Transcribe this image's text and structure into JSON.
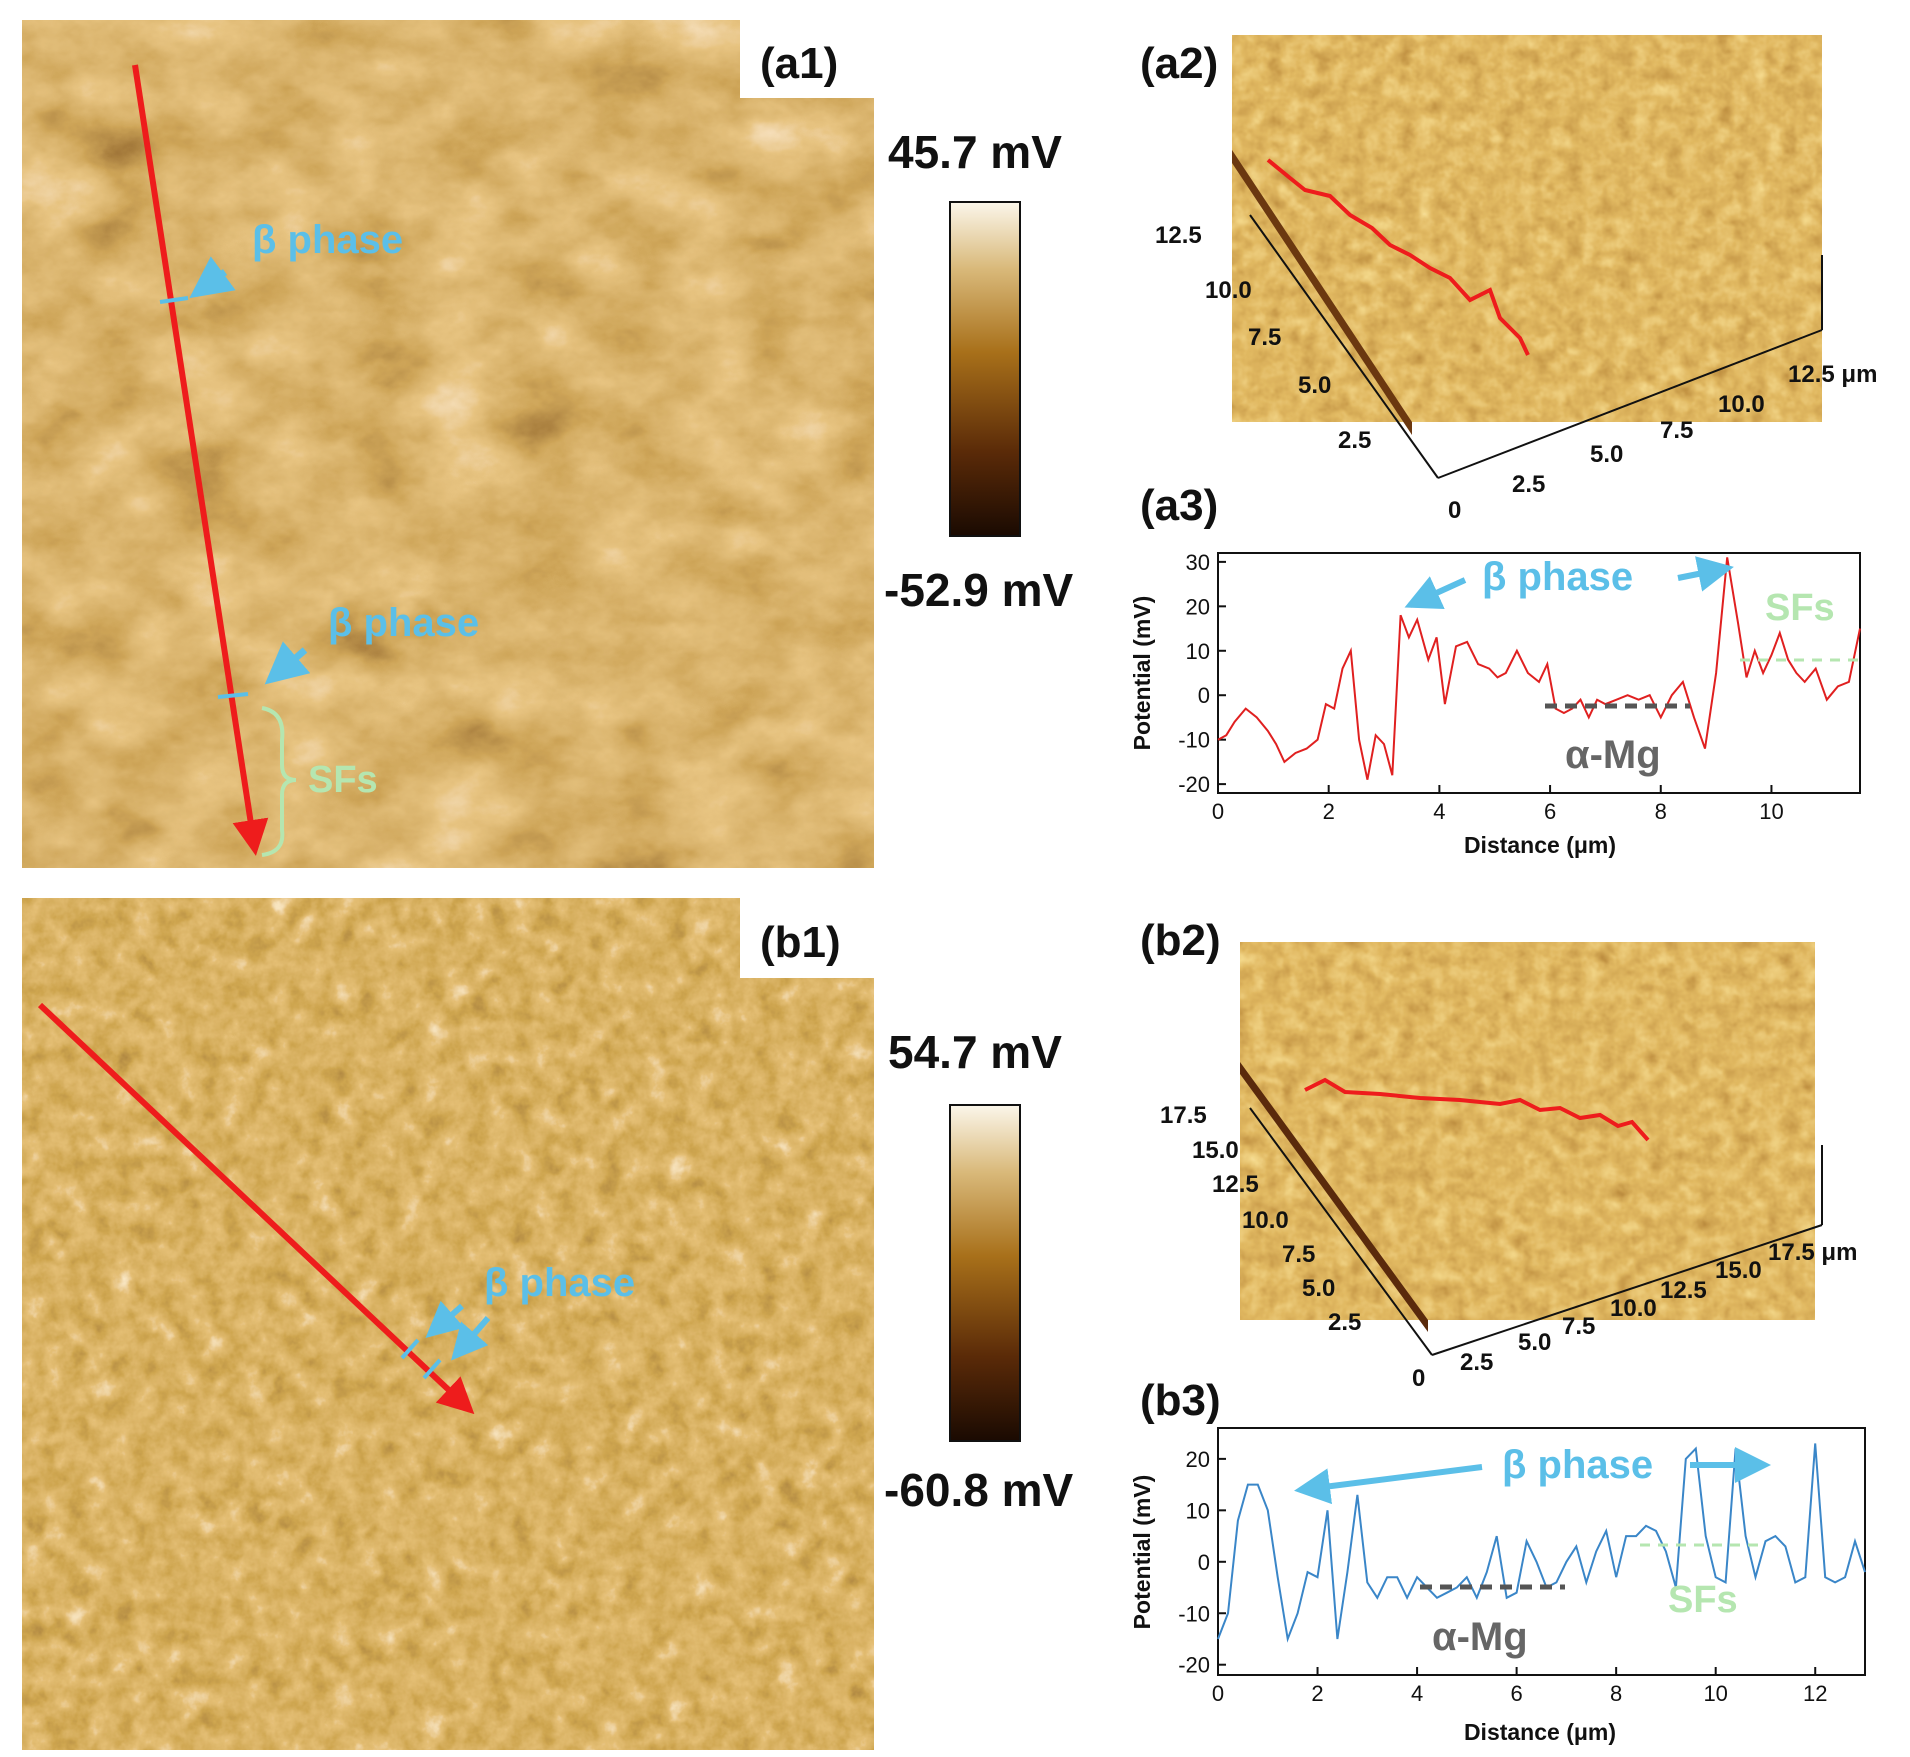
{
  "panels": {
    "a1": "(a1)",
    "a2": "(a2)",
    "a3": "(a3)",
    "b1": "(b1)",
    "b2": "(b2)",
    "b3": "(b3)"
  },
  "colorbars": {
    "a": {
      "max": "45.7 mV",
      "min": "-52.9 mV"
    },
    "b": {
      "max": "54.7 mV",
      "min": "-60.8 mV"
    }
  },
  "annotations": {
    "beta": "β phase",
    "sfs": "SFs",
    "alpha": "α-Mg"
  },
  "map3d": {
    "a2": {
      "ticks": [
        "12.5",
        "10.0",
        "7.5",
        "5.0",
        "2.5",
        "0",
        "2.5",
        "5.0",
        "7.5",
        "10.0",
        "12.5 μm"
      ]
    },
    "b2": {
      "ticks": [
        "17.5",
        "15.0",
        "12.5",
        "10.0",
        "7.5",
        "5.0",
        "2.5",
        "0",
        "2.5",
        "5.0",
        "7.5",
        "10.0",
        "12.5",
        "15.0",
        "17.5 μm"
      ]
    }
  },
  "colors": {
    "line_a": "#e02020",
    "line_b": "#3a86c8",
    "cyan": "#5bbfe8",
    "sfs_green": "#b5e6b0",
    "alpha_gray": "#555555",
    "red_arrow": "#ee1c1c"
  },
  "chart_data": [
    {
      "type": "line",
      "panel": "a3",
      "xlabel": "Distance (μm)",
      "ylabel": "Potential (mV)",
      "xlim": [
        0,
        11.6
      ],
      "ylim": [
        -22,
        32
      ],
      "xticks": [
        0,
        2,
        4,
        6,
        8,
        10
      ],
      "yticks": [
        -20,
        -10,
        0,
        10,
        20,
        30
      ],
      "x": [
        0,
        0.15,
        0.3,
        0.5,
        0.7,
        0.9,
        1.05,
        1.2,
        1.4,
        1.6,
        1.8,
        1.95,
        2.1,
        2.25,
        2.4,
        2.55,
        2.7,
        2.85,
        3.0,
        3.15,
        3.3,
        3.45,
        3.6,
        3.8,
        3.95,
        4.1,
        4.3,
        4.5,
        4.7,
        4.9,
        5.05,
        5.2,
        5.4,
        5.6,
        5.8,
        5.95,
        6.1,
        6.25,
        6.4,
        6.55,
        6.7,
        6.85,
        7.0,
        7.2,
        7.4,
        7.6,
        7.8,
        8.0,
        8.2,
        8.4,
        8.6,
        8.8,
        9.0,
        9.2,
        9.4,
        9.55,
        9.7,
        9.85,
        10.0,
        10.15,
        10.3,
        10.45,
        10.6,
        10.8,
        11.0,
        11.2,
        11.4,
        11.6
      ],
      "y": [
        -10,
        -9,
        -6,
        -3,
        -5,
        -8,
        -11,
        -15,
        -13,
        -12,
        -10,
        -2,
        -3,
        6,
        10,
        -10,
        -19,
        -9,
        -11,
        -18,
        18,
        13,
        17,
        8,
        13,
        -2,
        11,
        12,
        7,
        6,
        4,
        5,
        10,
        5,
        3,
        7,
        -3,
        -4,
        -3,
        -1,
        -5,
        -1,
        -2,
        -1,
        0,
        -1,
        0,
        -5,
        0,
        3,
        -5,
        -12,
        5,
        31,
        16,
        4,
        10,
        5,
        9,
        14,
        8,
        5,
        3,
        6,
        -1,
        2,
        3,
        15
      ]
    },
    {
      "type": "line",
      "panel": "b3",
      "xlabel": "Distance (μm)",
      "ylabel": "Potential (mV)",
      "xlim": [
        0,
        13
      ],
      "ylim": [
        -22,
        26
      ],
      "xticks": [
        0,
        2,
        4,
        6,
        8,
        10,
        12
      ],
      "yticks": [
        -20,
        -10,
        0,
        10,
        20
      ],
      "x": [
        0,
        0.2,
        0.4,
        0.6,
        0.8,
        1.0,
        1.2,
        1.4,
        1.6,
        1.8,
        2.0,
        2.2,
        2.4,
        2.6,
        2.8,
        3.0,
        3.2,
        3.4,
        3.6,
        3.8,
        4.0,
        4.2,
        4.4,
        4.6,
        4.8,
        5.0,
        5.2,
        5.4,
        5.6,
        5.8,
        6.0,
        6.2,
        6.4,
        6.6,
        6.8,
        7.0,
        7.2,
        7.4,
        7.6,
        7.8,
        8.0,
        8.2,
        8.4,
        8.6,
        8.8,
        9.0,
        9.2,
        9.4,
        9.6,
        9.8,
        10.0,
        10.2,
        10.4,
        10.6,
        10.8,
        11.0,
        11.2,
        11.4,
        11.6,
        11.8,
        12.0,
        12.2,
        12.4,
        12.6,
        12.8,
        13.0
      ],
      "y": [
        -15,
        -10,
        8,
        15,
        15,
        10,
        -3,
        -15,
        -10,
        -2,
        -3,
        10,
        -15,
        -2,
        13,
        -4,
        -7,
        -3,
        -3,
        -7,
        -3,
        -5,
        -7,
        -6,
        -5,
        -3,
        -7,
        -2,
        5,
        -7,
        -6,
        4,
        0,
        -5,
        -4,
        0,
        3,
        -4,
        2,
        6,
        -3,
        5,
        5,
        7,
        6,
        2,
        -5,
        20,
        22,
        5,
        -3,
        -4,
        22,
        5,
        -3,
        4,
        5,
        3,
        -4,
        -3,
        23,
        -3,
        -4,
        -3,
        4,
        -2
      ]
    }
  ]
}
